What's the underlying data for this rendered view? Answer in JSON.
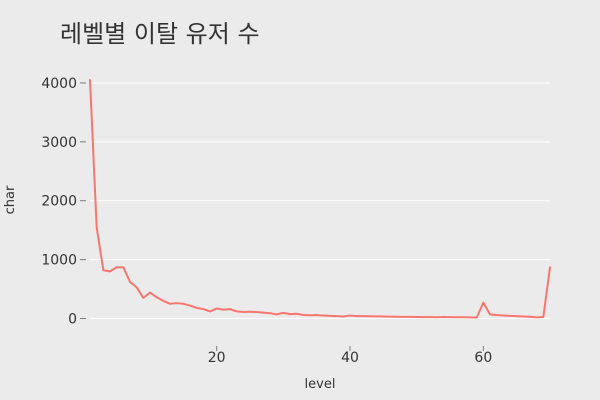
{
  "chart_data": {
    "type": "line",
    "title": "레벨별 이탈 유저 수",
    "xlabel": "level",
    "ylabel": "char",
    "xlim": [
      1,
      70
    ],
    "ylim": [
      -450,
      4050
    ],
    "x_ticks": [
      20,
      40,
      60
    ],
    "y_ticks": [
      0,
      1000,
      2000,
      3000,
      4000
    ],
    "x_tick_labels": [
      "20",
      "40",
      "60"
    ],
    "y_tick_labels": [
      "0",
      "1000",
      "2000",
      "3000",
      "4000"
    ],
    "grid": true,
    "legend": "none",
    "series": [
      {
        "color": "#f8766d",
        "x": [
          1,
          2,
          3,
          4,
          5,
          6,
          7,
          8,
          9,
          10,
          11,
          12,
          13,
          14,
          15,
          16,
          17,
          18,
          19,
          20,
          21,
          22,
          23,
          24,
          25,
          26,
          27,
          28,
          29,
          30,
          31,
          32,
          33,
          34,
          35,
          36,
          37,
          38,
          39,
          40,
          41,
          42,
          43,
          44,
          45,
          46,
          47,
          48,
          49,
          50,
          51,
          52,
          53,
          54,
          55,
          56,
          57,
          58,
          59,
          60,
          61,
          62,
          63,
          64,
          65,
          66,
          67,
          68,
          69,
          70
        ],
        "y": [
          4050,
          1550,
          820,
          800,
          870,
          870,
          620,
          530,
          350,
          440,
          360,
          300,
          250,
          260,
          250,
          220,
          180,
          160,
          120,
          170,
          150,
          160,
          120,
          110,
          115,
          110,
          100,
          90,
          70,
          95,
          75,
          80,
          60,
          55,
          60,
          50,
          45,
          40,
          35,
          50,
          40,
          40,
          38,
          36,
          35,
          32,
          30,
          28,
          27,
          25,
          24,
          23,
          22,
          25,
          24,
          22,
          21,
          20,
          15,
          270,
          70,
          60,
          50,
          45,
          40,
          35,
          30,
          20,
          25,
          870
        ]
      }
    ]
  }
}
